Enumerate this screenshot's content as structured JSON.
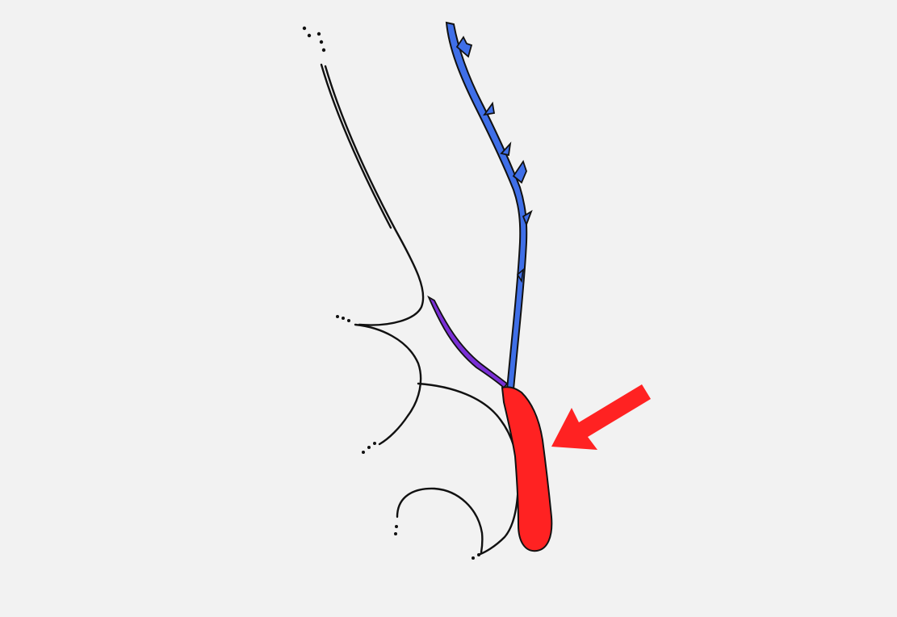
{
  "diagram": {
    "background_color": "#f2f2f2",
    "outline_color": "#111111",
    "structures": [
      {
        "name": "upper-duct",
        "color": "#3f6fe8"
      },
      {
        "name": "side-duct",
        "color": "#7a2fd6"
      },
      {
        "name": "highlighted-segment",
        "color": "#ff2222"
      }
    ],
    "pointer": {
      "color": "#ff2222",
      "icon": "arrow-icon"
    }
  }
}
